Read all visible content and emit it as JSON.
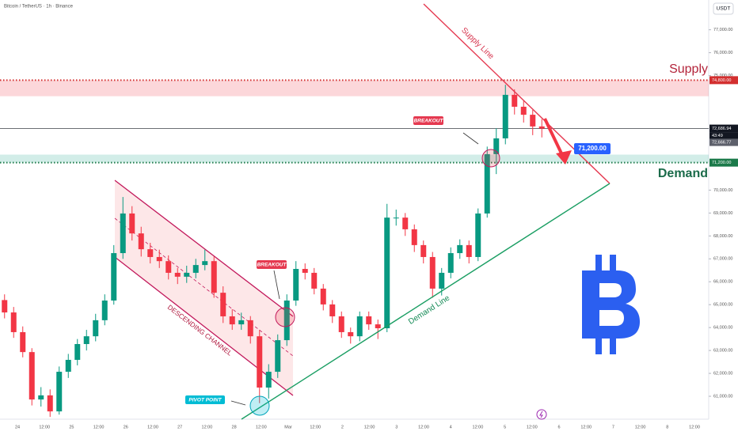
{
  "header": "Bitcoin / TetherUS · 1h · Binance",
  "currency_button": "USDT",
  "chart_data": {
    "type": "candlestick",
    "time_labels": [
      "24",
      "12:00",
      "25",
      "12:00",
      "26",
      "12:00",
      "27",
      "12:00",
      "28",
      "12:00",
      "Mar",
      "12:00",
      "2",
      "12:00",
      "3",
      "12:00",
      "4",
      "12:00",
      "5",
      "12:00",
      "6",
      "12:00",
      "7",
      "12:00",
      "8",
      "12:00"
    ],
    "open": [
      65200,
      64660,
      63800,
      62930,
      60860,
      61040,
      60340,
      62070,
      62590,
      63280,
      63620,
      64320,
      65180,
      67250,
      68980,
      68110,
      67420,
      67080,
      66900,
      66390,
      66220,
      66390,
      66730,
      66900,
      65520,
      64490,
      64140,
      64320,
      63620,
      61380,
      62070,
      63450,
      65180,
      66560,
      66390,
      65700,
      65010,
      64490,
      63800,
      63620,
      64490,
      64140,
      63970,
      68800,
      68800,
      68290,
      67600,
      67080,
      65700,
      66390,
      67250,
      67600,
      67080,
      68980,
      71570,
      72260,
      74160,
      73640,
      73290,
      72780
    ],
    "high": [
      65450,
      64900,
      64050,
      63100,
      61400,
      61300,
      62300,
      62850,
      63500,
      63900,
      64600,
      65450,
      67600,
      69700,
      69300,
      68400,
      67700,
      67400,
      67150,
      66600,
      66700,
      67000,
      67400,
      67100,
      65800,
      64800,
      64650,
      64500,
      63900,
      62400,
      63700,
      65450,
      66900,
      66800,
      66600,
      65900,
      65200,
      64700,
      64000,
      64700,
      64700,
      64350,
      69400,
      69150,
      69000,
      68500,
      67800,
      67300,
      66600,
      67500,
      67850,
      67800,
      69200,
      71900,
      72700,
      74600,
      74400,
      73900,
      73500,
      73100
    ],
    "low": [
      64400,
      63550,
      62700,
      60600,
      60550,
      60100,
      60200,
      61800,
      62350,
      63000,
      63400,
      64100,
      65000,
      67000,
      67800,
      67100,
      66800,
      66600,
      66100,
      65900,
      65950,
      66150,
      66500,
      65300,
      64200,
      63900,
      63900,
      63300,
      60700,
      60900,
      61800,
      63200,
      64950,
      66100,
      65450,
      64750,
      64200,
      63550,
      63300,
      63400,
      63900,
      63500,
      63800,
      68450,
      68000,
      67300,
      66800,
      65300,
      65400,
      66150,
      67000,
      66800,
      66900,
      68800,
      70700,
      72000,
      73300,
      72950,
      72400,
      72300
    ],
    "close": [
      64660,
      63800,
      62930,
      60860,
      61040,
      60340,
      62070,
      62590,
      63280,
      63620,
      64320,
      65180,
      67250,
      68980,
      68110,
      67420,
      67080,
      66900,
      66390,
      66220,
      66390,
      66730,
      66900,
      65520,
      64490,
      64140,
      64320,
      63620,
      61380,
      62070,
      63450,
      65180,
      66560,
      66390,
      65700,
      65010,
      64490,
      63800,
      63620,
      64490,
      64140,
      63970,
      68800,
      68800,
      68290,
      67600,
      67080,
      65700,
      66390,
      67250,
      67600,
      67080,
      68980,
      71570,
      72260,
      74160,
      73640,
      73290,
      72780,
      72686.94
    ],
    "up_color": "#089981",
    "down_color": "#f23645",
    "ylim": [
      60000,
      78300
    ],
    "yticks": [
      {
        "value": 61000,
        "label": "61,000.00"
      },
      {
        "value": 62000,
        "label": "62,000.00"
      },
      {
        "value": 63000,
        "label": "63,000.00"
      },
      {
        "value": 64000,
        "label": "64,000.00"
      },
      {
        "value": 65000,
        "label": "65,000.00"
      },
      {
        "value": 66000,
        "label": "66,000.00"
      },
      {
        "value": 67000,
        "label": "67,000.00"
      },
      {
        "value": 68000,
        "label": "68,000.00"
      },
      {
        "value": 69000,
        "label": "69,000.00"
      },
      {
        "value": 70000,
        "label": "70,000.00"
      },
      {
        "value": 75000,
        "label": "75,000.00"
      },
      {
        "value": 76000,
        "label": "76,000.00"
      },
      {
        "value": 77000,
        "label": "77,000.00"
      }
    ],
    "supply_level": {
      "value": 74800,
      "label": "74,800.00"
    },
    "demand_level": {
      "value": 71200,
      "label": "71,200.00"
    },
    "supply_zone": [
      74100,
      74800
    ],
    "demand_zone": [
      71200,
      71550
    ],
    "last_price": {
      "value": 72686.94,
      "label": "72,686.94"
    },
    "countdown": "43:49",
    "prev_close": {
      "value": 72666.77,
      "label": "72,666.77"
    },
    "annotations": {
      "supply": "Supply",
      "demand": "Demand",
      "supply_line": "Supply Line",
      "demand_line": "Demand Line",
      "channel": "DESCENDING CHANNEL",
      "breakout_1": "BREAKOUT",
      "breakout_2": "BREAKOUT",
      "pivot": "PIVOT POINT",
      "target": "71,200.00"
    }
  }
}
